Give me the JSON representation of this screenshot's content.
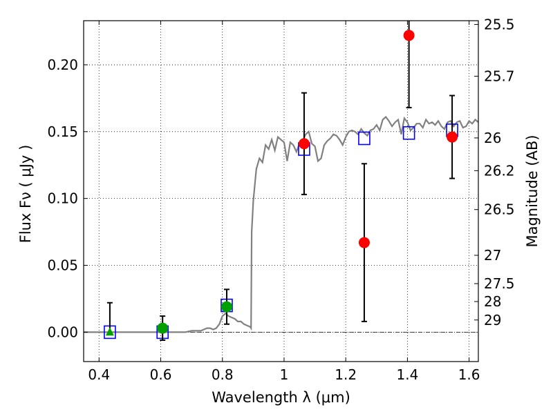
{
  "chart_data": {
    "type": "scatter",
    "xlabel": "Wavelength  λ (μm)",
    "ylabel": "Flux  Fν  ( μJy )",
    "y2label": "Magnitude (AB)",
    "xlim": [
      0.35,
      1.63
    ],
    "ylim": [
      -0.022,
      0.233
    ],
    "grid": true,
    "x_ticks": [
      0.4,
      0.6,
      0.8,
      1.0,
      1.2,
      1.4,
      1.6
    ],
    "x_tick_labels": [
      "0.4",
      "0.6",
      "0.8",
      "1",
      "1.2",
      "1.4",
      "1.6"
    ],
    "y_ticks": [
      0.0,
      0.05,
      0.1,
      0.15,
      0.2
    ],
    "y_tick_labels": [
      "0.00",
      "0.05",
      "0.10",
      "0.15",
      "0.20"
    ],
    "magnitude_ticks": [
      {
        "label": "25.5",
        "flux": 0.2302
      },
      {
        "label": "25.7",
        "flux": 0.1915
      },
      {
        "label": "26",
        "flux": 0.1453
      },
      {
        "label": "26.2",
        "flux": 0.1208
      },
      {
        "label": "26.5",
        "flux": 0.0917
      },
      {
        "label": "27",
        "flux": 0.0575
      },
      {
        "label": "27.5",
        "flux": 0.0363
      },
      {
        "label": "28",
        "flux": 0.0229
      },
      {
        "label": "29",
        "flux": 0.0091
      }
    ],
    "series": [
      {
        "kind": "model_spectrum",
        "color": "#808080",
        "x": [
          0.35,
          0.4,
          0.45,
          0.5,
          0.55,
          0.6,
          0.65,
          0.68,
          0.7,
          0.71,
          0.72,
          0.73,
          0.74,
          0.75,
          0.76,
          0.77,
          0.78,
          0.79,
          0.8,
          0.81,
          0.82,
          0.83,
          0.84,
          0.85,
          0.86,
          0.87,
          0.88,
          0.89,
          0.893,
          0.895,
          0.9,
          0.91,
          0.92,
          0.93,
          0.94,
          0.95,
          0.96,
          0.97,
          0.98,
          0.99,
          1.0,
          1.01,
          1.02,
          1.03,
          1.04,
          1.05,
          1.06,
          1.07,
          1.08,
          1.09,
          1.1,
          1.11,
          1.12,
          1.13,
          1.14,
          1.15,
          1.16,
          1.17,
          1.18,
          1.19,
          1.2,
          1.21,
          1.22,
          1.23,
          1.24,
          1.25,
          1.26,
          1.27,
          1.28,
          1.29,
          1.3,
          1.31,
          1.32,
          1.33,
          1.34,
          1.35,
          1.36,
          1.37,
          1.38,
          1.39,
          1.4,
          1.41,
          1.42,
          1.43,
          1.44,
          1.45,
          1.46,
          1.47,
          1.48,
          1.49,
          1.5,
          1.51,
          1.52,
          1.53,
          1.54,
          1.55,
          1.56,
          1.57,
          1.58,
          1.59,
          1.6,
          1.61,
          1.62,
          1.63
        ],
        "y": [
          0.0,
          0.0,
          0.0,
          0.0,
          0.0,
          0.0,
          0.0,
          0.0,
          0.001,
          0.001,
          0.001,
          0.001,
          0.002,
          0.003,
          0.003,
          0.002,
          0.003,
          0.006,
          0.012,
          0.014,
          0.012,
          0.011,
          0.01,
          0.008,
          0.008,
          0.006,
          0.005,
          0.004,
          0.003,
          0.075,
          0.098,
          0.122,
          0.13,
          0.127,
          0.14,
          0.137,
          0.144,
          0.136,
          0.146,
          0.144,
          0.142,
          0.128,
          0.142,
          0.14,
          0.135,
          0.141,
          0.143,
          0.148,
          0.15,
          0.141,
          0.139,
          0.128,
          0.13,
          0.14,
          0.143,
          0.145,
          0.148,
          0.147,
          0.144,
          0.14,
          0.146,
          0.15,
          0.151,
          0.15,
          0.148,
          0.152,
          0.149,
          0.147,
          0.151,
          0.152,
          0.155,
          0.151,
          0.159,
          0.161,
          0.158,
          0.154,
          0.157,
          0.159,
          0.148,
          0.16,
          0.157,
          0.151,
          0.153,
          0.156,
          0.156,
          0.153,
          0.159,
          0.156,
          0.157,
          0.155,
          0.158,
          0.154,
          0.152,
          0.157,
          0.158,
          0.154,
          0.157,
          0.158,
          0.153,
          0.154,
          0.158,
          0.156,
          0.159,
          0.157
        ]
      },
      {
        "kind": "model_photometry",
        "marker": "open-square",
        "color": "#0000ff",
        "x": [
          0.435,
          0.606,
          0.814,
          1.065,
          1.26,
          1.405,
          1.545
        ],
        "y": [
          0.0,
          0.0,
          0.02,
          0.137,
          0.145,
          0.149,
          0.151
        ]
      },
      {
        "kind": "observed_detection",
        "marker": "circle",
        "color": "#00a000",
        "x": [
          0.606,
          0.814
        ],
        "y": [
          0.003,
          0.019
        ],
        "err": [
          0.009,
          0.013
        ]
      },
      {
        "kind": "observed_upper_limit",
        "marker": "triangle",
        "color": "#00a000",
        "x": [
          0.435
        ],
        "y": [
          0.0
        ],
        "err_up": [
          0.022
        ]
      },
      {
        "kind": "observed_nir",
        "marker": "circle",
        "color": "#ff0000",
        "x": [
          1.065,
          1.26,
          1.405,
          1.545
        ],
        "y": [
          0.141,
          0.067,
          0.222,
          0.146
        ],
        "err": [
          0.038,
          0.059,
          0.054,
          0.031
        ]
      }
    ]
  }
}
